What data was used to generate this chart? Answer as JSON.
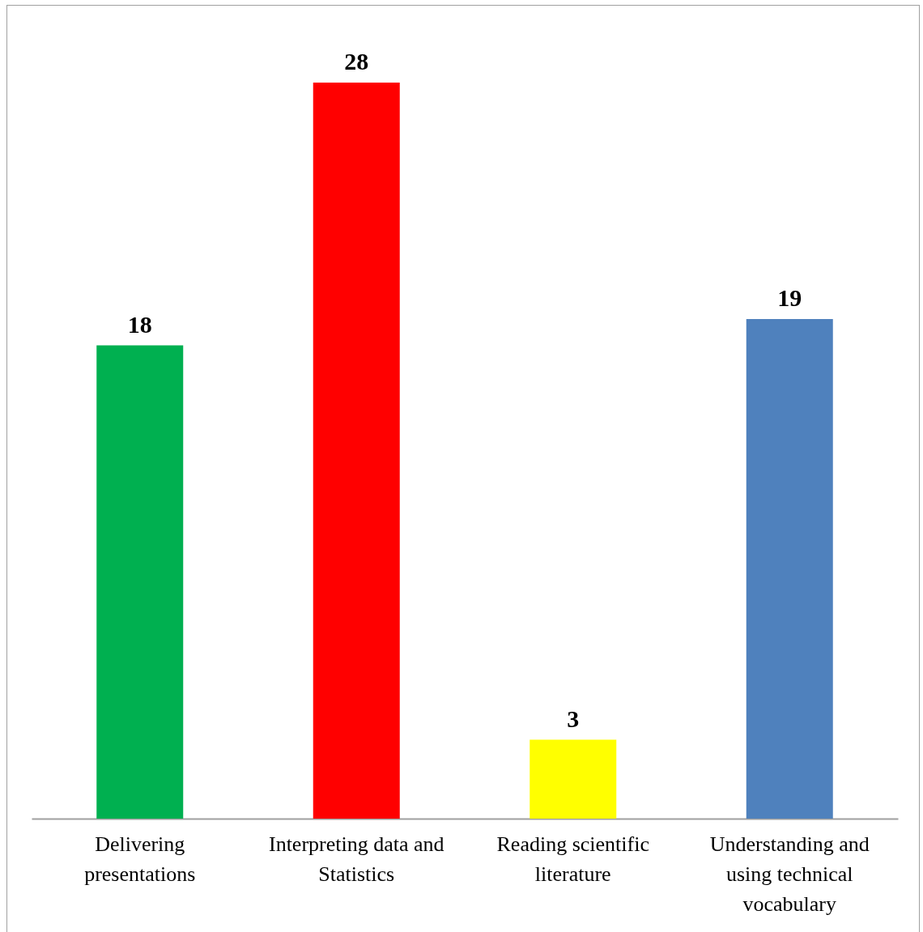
{
  "chart_data": {
    "type": "bar",
    "categories": [
      "Delivering presentations",
      "Interpreting data and Statistics",
      "Reading scientific literature",
      "Understanding and using technical vocabulary"
    ],
    "values": [
      18,
      28,
      3,
      19
    ],
    "colors": [
      "#00b050",
      "#ff0000",
      "#ffff00",
      "#4f81bd"
    ],
    "data_labels": true
  }
}
